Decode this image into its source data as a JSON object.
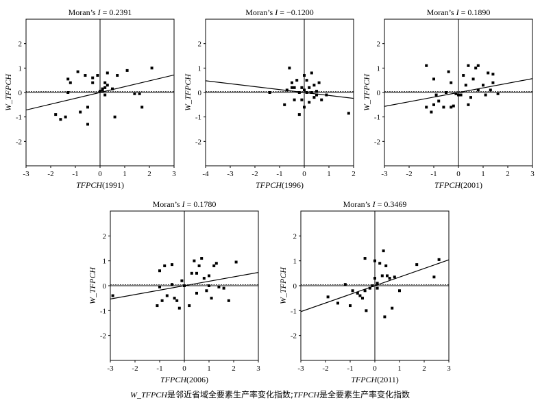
{
  "caption": {
    "var1": "W_TFPCH",
    "text1": "是邻近省域全要素生产率变化指数;",
    "var2": "TFPCH",
    "text2": "是全要素生产率变化指数"
  },
  "chart_data": [
    {
      "type": "scatter",
      "title_prefix": "Moran’s ",
      "title_var": "I",
      "title_value": " = 0.2391",
      "xlabel_var": "TFPCH",
      "xlabel_year": "(1991)",
      "ylabel": "W_TFPCH",
      "xlim": [
        -3,
        3
      ],
      "ylim": [
        -3,
        3
      ],
      "xticks": [
        -3,
        -2,
        -1,
        0,
        1,
        2,
        3
      ],
      "yticks": [
        2,
        1,
        0,
        -1,
        -2
      ],
      "slope": 0.2391,
      "points": [
        [
          -1.8,
          -0.9
        ],
        [
          -1.6,
          -1.1
        ],
        [
          -1.4,
          -1.0
        ],
        [
          -1.3,
          0.55
        ],
        [
          -1.3,
          0.0
        ],
        [
          -1.2,
          0.4
        ],
        [
          -0.9,
          0.85
        ],
        [
          -0.8,
          -0.8
        ],
        [
          -0.6,
          0.7
        ],
        [
          -0.5,
          -0.6
        ],
        [
          -0.5,
          -1.3
        ],
        [
          -0.3,
          0.6
        ],
        [
          -0.3,
          0.4
        ],
        [
          0.0,
          0.05
        ],
        [
          0.1,
          0.1
        ],
        [
          0.2,
          0.4
        ],
        [
          0.2,
          -0.1
        ],
        [
          0.3,
          0.3
        ],
        [
          0.3,
          0.8
        ],
        [
          0.5,
          0.15
        ],
        [
          0.6,
          -1.0
        ],
        [
          0.7,
          0.7
        ],
        [
          1.1,
          0.9
        ],
        [
          1.4,
          -0.05
        ],
        [
          1.6,
          -0.05
        ],
        [
          1.7,
          -0.6
        ],
        [
          2.1,
          1.0
        ],
        [
          -0.1,
          0.7
        ],
        [
          0.1,
          0.15
        ],
        [
          0.2,
          0.2
        ]
      ]
    },
    {
      "type": "scatter",
      "title_prefix": "Moran’s ",
      "title_var": "I",
      "title_value": " = −0.1200",
      "xlabel_var": "TFPCH",
      "xlabel_year": "(1996)",
      "ylabel": "W_TFPCH",
      "xlim": [
        -4,
        2
      ],
      "ylim": [
        -3,
        3
      ],
      "xticks": [
        -4,
        -3,
        -2,
        -1,
        0,
        1,
        2
      ],
      "yticks": [
        2,
        1,
        0,
        -1,
        -2
      ],
      "slope": -0.12,
      "points": [
        [
          -1.4,
          0.0
        ],
        [
          -0.8,
          -0.5
        ],
        [
          -0.7,
          0.1
        ],
        [
          -0.6,
          1.0
        ],
        [
          -0.5,
          0.4
        ],
        [
          -0.4,
          0.2
        ],
        [
          -0.4,
          -0.3
        ],
        [
          -0.3,
          0.5
        ],
        [
          -0.2,
          -0.9
        ],
        [
          -0.2,
          0.0
        ],
        [
          -0.1,
          0.2
        ],
        [
          -0.1,
          -0.3
        ],
        [
          0.0,
          0.7
        ],
        [
          0.0,
          0.1
        ],
        [
          0.1,
          0.0
        ],
        [
          0.1,
          0.5
        ],
        [
          0.2,
          -0.4
        ],
        [
          0.2,
          0.2
        ],
        [
          0.3,
          0.8
        ],
        [
          0.4,
          -0.2
        ],
        [
          0.4,
          0.3
        ],
        [
          0.5,
          0.05
        ],
        [
          0.5,
          -0.1
        ],
        [
          0.6,
          0.4
        ],
        [
          0.7,
          -0.3
        ],
        [
          0.9,
          -0.1
        ],
        [
          1.8,
          -0.85
        ],
        [
          -0.5,
          0.2
        ],
        [
          0.0,
          -0.6
        ],
        [
          0.3,
          0.0
        ]
      ]
    },
    {
      "type": "scatter",
      "title_prefix": "Moran’s ",
      "title_var": "I",
      "title_value": " = 0.1890",
      "xlabel_var": "TFPCH",
      "xlabel_year": "(2001)",
      "ylabel": "W_TFPCH",
      "xlim": [
        -3,
        3
      ],
      "ylim": [
        -3,
        3
      ],
      "xticks": [
        -3,
        -2,
        -1,
        0,
        1,
        2,
        3
      ],
      "yticks": [
        2,
        1,
        0,
        -1,
        -2
      ],
      "slope": 0.189,
      "points": [
        [
          -1.3,
          1.1
        ],
        [
          -1.3,
          -0.6
        ],
        [
          -1.1,
          -0.8
        ],
        [
          -1.0,
          -0.5
        ],
        [
          -1.0,
          0.55
        ],
        [
          -0.9,
          -0.1
        ],
        [
          -0.8,
          -0.35
        ],
        [
          -0.6,
          -0.6
        ],
        [
          -0.5,
          0.0
        ],
        [
          -0.4,
          0.85
        ],
        [
          -0.3,
          -0.6
        ],
        [
          -0.3,
          0.4
        ],
        [
          -0.2,
          -0.55
        ],
        [
          -0.1,
          -0.05
        ],
        [
          0.0,
          -0.1
        ],
        [
          0.2,
          0.7
        ],
        [
          0.3,
          0.3
        ],
        [
          0.4,
          1.1
        ],
        [
          0.4,
          -0.5
        ],
        [
          0.5,
          -0.2
        ],
        [
          0.6,
          0.55
        ],
        [
          0.7,
          1.0
        ],
        [
          0.8,
          0.1
        ],
        [
          0.8,
          1.1
        ],
        [
          1.0,
          0.3
        ],
        [
          1.1,
          -0.1
        ],
        [
          1.2,
          0.8
        ],
        [
          1.3,
          0.1
        ],
        [
          1.4,
          0.4
        ],
        [
          1.4,
          0.75
        ],
        [
          1.6,
          -0.05
        ],
        [
          0.1,
          -0.1
        ]
      ]
    },
    {
      "type": "scatter",
      "title_prefix": "Moran’s ",
      "title_var": "I",
      "title_value": " = 0.1780",
      "xlabel_var": "TFPCH",
      "xlabel_year": "(2006)",
      "ylabel": "W_TFPCH",
      "xlim": [
        -3,
        3
      ],
      "ylim": [
        -3,
        3
      ],
      "xticks": [
        -3,
        -2,
        -1,
        0,
        1,
        2,
        3
      ],
      "yticks": [
        2,
        1,
        0,
        -1,
        -2
      ],
      "slope": 0.178,
      "points": [
        [
          -2.9,
          -0.4
        ],
        [
          -1.1,
          -0.8
        ],
        [
          -1.0,
          0.6
        ],
        [
          -1.0,
          -0.05
        ],
        [
          -0.9,
          -0.6
        ],
        [
          -0.8,
          0.8
        ],
        [
          -0.7,
          -0.4
        ],
        [
          -0.5,
          0.05
        ],
        [
          -0.5,
          0.85
        ],
        [
          -0.4,
          -0.5
        ],
        [
          -0.3,
          -0.6
        ],
        [
          -0.2,
          -0.9
        ],
        [
          -0.1,
          0.2
        ],
        [
          0.0,
          0.0
        ],
        [
          0.2,
          -0.8
        ],
        [
          0.3,
          0.5
        ],
        [
          0.4,
          1.0
        ],
        [
          0.5,
          -0.3
        ],
        [
          0.6,
          0.8
        ],
        [
          0.7,
          1.1
        ],
        [
          0.8,
          0.3
        ],
        [
          0.9,
          -0.2
        ],
        [
          1.0,
          0.4
        ],
        [
          1.1,
          -0.5
        ],
        [
          1.2,
          0.8
        ],
        [
          1.3,
          0.9
        ],
        [
          1.4,
          -0.05
        ],
        [
          1.6,
          -0.1
        ],
        [
          1.8,
          -0.6
        ],
        [
          2.1,
          0.95
        ],
        [
          0.5,
          0.5
        ],
        [
          1.0,
          0.0
        ]
      ]
    },
    {
      "type": "scatter",
      "title_prefix": "Moran’s ",
      "title_var": "I",
      "title_value": " = 0.3469",
      "xlabel_var": "TFPCH",
      "xlabel_year": "(2011)",
      "ylabel": "W_TFPCH",
      "xlim": [
        -3,
        3
      ],
      "ylim": [
        -3,
        3
      ],
      "xticks": [
        -3,
        -2,
        -1,
        0,
        1,
        2,
        3
      ],
      "yticks": [
        2,
        1,
        0,
        -1,
        -2
      ],
      "slope": 0.3469,
      "points": [
        [
          -1.9,
          -0.45
        ],
        [
          -1.5,
          -0.7
        ],
        [
          -1.2,
          0.05
        ],
        [
          -1.0,
          -0.8
        ],
        [
          -0.9,
          -0.2
        ],
        [
          -0.7,
          -0.3
        ],
        [
          -0.6,
          -0.4
        ],
        [
          -0.5,
          -0.5
        ],
        [
          -0.4,
          -0.2
        ],
        [
          -0.4,
          1.1
        ],
        [
          -0.35,
          -1.0
        ],
        [
          -0.2,
          -0.1
        ],
        [
          -0.1,
          0.0
        ],
        [
          0.0,
          0.3
        ],
        [
          0.1,
          -0.1
        ],
        [
          0.2,
          0.9
        ],
        [
          0.3,
          0.4
        ],
        [
          0.35,
          1.4
        ],
        [
          0.4,
          -1.25
        ],
        [
          0.45,
          0.8
        ],
        [
          0.5,
          0.4
        ],
        [
          0.6,
          0.3
        ],
        [
          0.7,
          -0.9
        ],
        [
          0.8,
          0.35
        ],
        [
          1.0,
          -0.2
        ],
        [
          1.7,
          0.85
        ],
        [
          2.4,
          0.35
        ],
        [
          2.6,
          1.05
        ],
        [
          0.1,
          0.1
        ],
        [
          0.0,
          1.0
        ]
      ]
    }
  ]
}
